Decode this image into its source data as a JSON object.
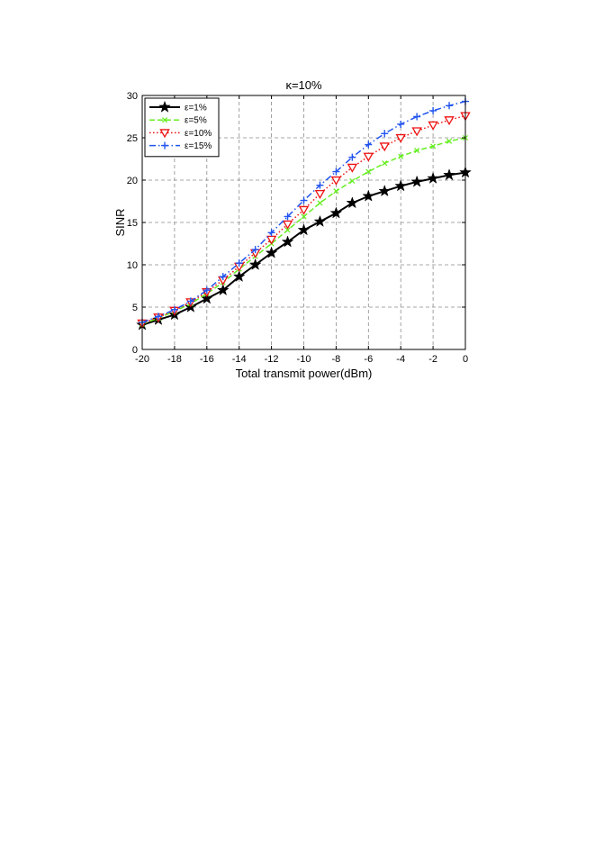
{
  "chart_data": {
    "type": "line",
    "title": "κ=10%",
    "xlabel": "Total transmit power(dBm)",
    "ylabel": "SINR",
    "xlim": [
      -20,
      0
    ],
    "ylim": [
      0,
      30
    ],
    "xticks": [
      -20,
      -18,
      -16,
      -14,
      -12,
      -10,
      -8,
      -6,
      -4,
      -2,
      0
    ],
    "yticks": [
      0,
      5,
      10,
      15,
      20,
      25,
      30
    ],
    "grid": true,
    "legend_position": "top-left",
    "x": [
      -20,
      -19,
      -18,
      -17,
      -16,
      -15,
      -14,
      -13,
      -12,
      -11,
      -10,
      -9,
      -8,
      -7,
      -6,
      -5,
      -4,
      -3,
      -2,
      -1,
      0
    ],
    "series": [
      {
        "name": "ε=1%",
        "color": "#000000",
        "line_style": "solid",
        "marker": "star",
        "values": [
          2.9,
          3.5,
          4.1,
          5.0,
          6.0,
          7.0,
          8.6,
          10.0,
          11.4,
          12.7,
          14.1,
          15.1,
          16.1,
          17.3,
          18.1,
          18.7,
          19.3,
          19.8,
          20.2,
          20.6,
          20.9
        ]
      },
      {
        "name": "ε=5%",
        "color": "#66ee22",
        "line_style": "dashed",
        "marker": "x",
        "values": [
          3.0,
          3.7,
          4.5,
          5.4,
          6.6,
          7.9,
          9.5,
          11.0,
          12.5,
          14.1,
          15.7,
          17.3,
          18.7,
          19.9,
          21.0,
          22.0,
          22.8,
          23.5,
          24.0,
          24.6,
          25.0
        ]
      },
      {
        "name": "ε=10%",
        "color": "#ee1111",
        "line_style": "dotted",
        "marker": "triangle-down",
        "values": [
          3.1,
          3.8,
          4.6,
          5.6,
          6.8,
          8.2,
          9.8,
          11.4,
          13.0,
          14.8,
          16.5,
          18.4,
          20.0,
          21.5,
          22.8,
          24.0,
          25.0,
          25.8,
          26.5,
          27.1,
          27.6
        ]
      },
      {
        "name": "ε=15%",
        "color": "#2255ee",
        "line_style": "dashdot",
        "marker": "plus",
        "values": [
          3.2,
          3.9,
          4.7,
          5.7,
          7.0,
          8.6,
          10.2,
          11.8,
          13.8,
          15.7,
          17.6,
          19.4,
          21.0,
          22.7,
          24.2,
          25.5,
          26.6,
          27.5,
          28.2,
          28.8,
          29.3
        ]
      }
    ]
  }
}
